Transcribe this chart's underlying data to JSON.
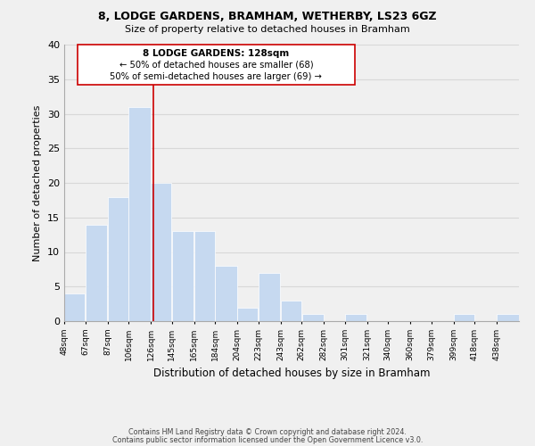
{
  "title1": "8, LODGE GARDENS, BRAMHAM, WETHERBY, LS23 6GZ",
  "title2": "Size of property relative to detached houses in Bramham",
  "xlabel": "Distribution of detached houses by size in Bramham",
  "ylabel": "Number of detached properties",
  "bar_labels": [
    "48sqm",
    "67sqm",
    "87sqm",
    "106sqm",
    "126sqm",
    "145sqm",
    "165sqm",
    "184sqm",
    "204sqm",
    "223sqm",
    "243sqm",
    "262sqm",
    "282sqm",
    "301sqm",
    "321sqm",
    "340sqm",
    "360sqm",
    "379sqm",
    "399sqm",
    "418sqm",
    "438sqm"
  ],
  "bar_values": [
    4,
    14,
    18,
    31,
    20,
    13,
    13,
    8,
    2,
    7,
    3,
    1,
    0,
    1,
    0,
    0,
    0,
    0,
    1,
    0,
    1
  ],
  "bar_edges": [
    48,
    67,
    87,
    106,
    126,
    145,
    165,
    184,
    204,
    223,
    243,
    262,
    282,
    301,
    321,
    340,
    360,
    379,
    399,
    418,
    438,
    458
  ],
  "bar_color": "#c6d9f0",
  "bar_edgecolor": "#ffffff",
  "reference_line_x": 128,
  "reference_line_color": "#cc0000",
  "annotation_line1": "8 LODGE GARDENS: 128sqm",
  "annotation_line2": "← 50% of detached houses are smaller (68)",
  "annotation_line3": "50% of semi-detached houses are larger (69) →",
  "annotation_box_edgecolor": "#cc0000",
  "annotation_box_facecolor": "#ffffff",
  "ylim": [
    0,
    40
  ],
  "yticks": [
    0,
    5,
    10,
    15,
    20,
    25,
    30,
    35,
    40
  ],
  "grid_color": "#d8d8d8",
  "bg_color": "#f0f0f0",
  "footer1": "Contains HM Land Registry data © Crown copyright and database right 2024.",
  "footer2": "Contains public sector information licensed under the Open Government Licence v3.0."
}
